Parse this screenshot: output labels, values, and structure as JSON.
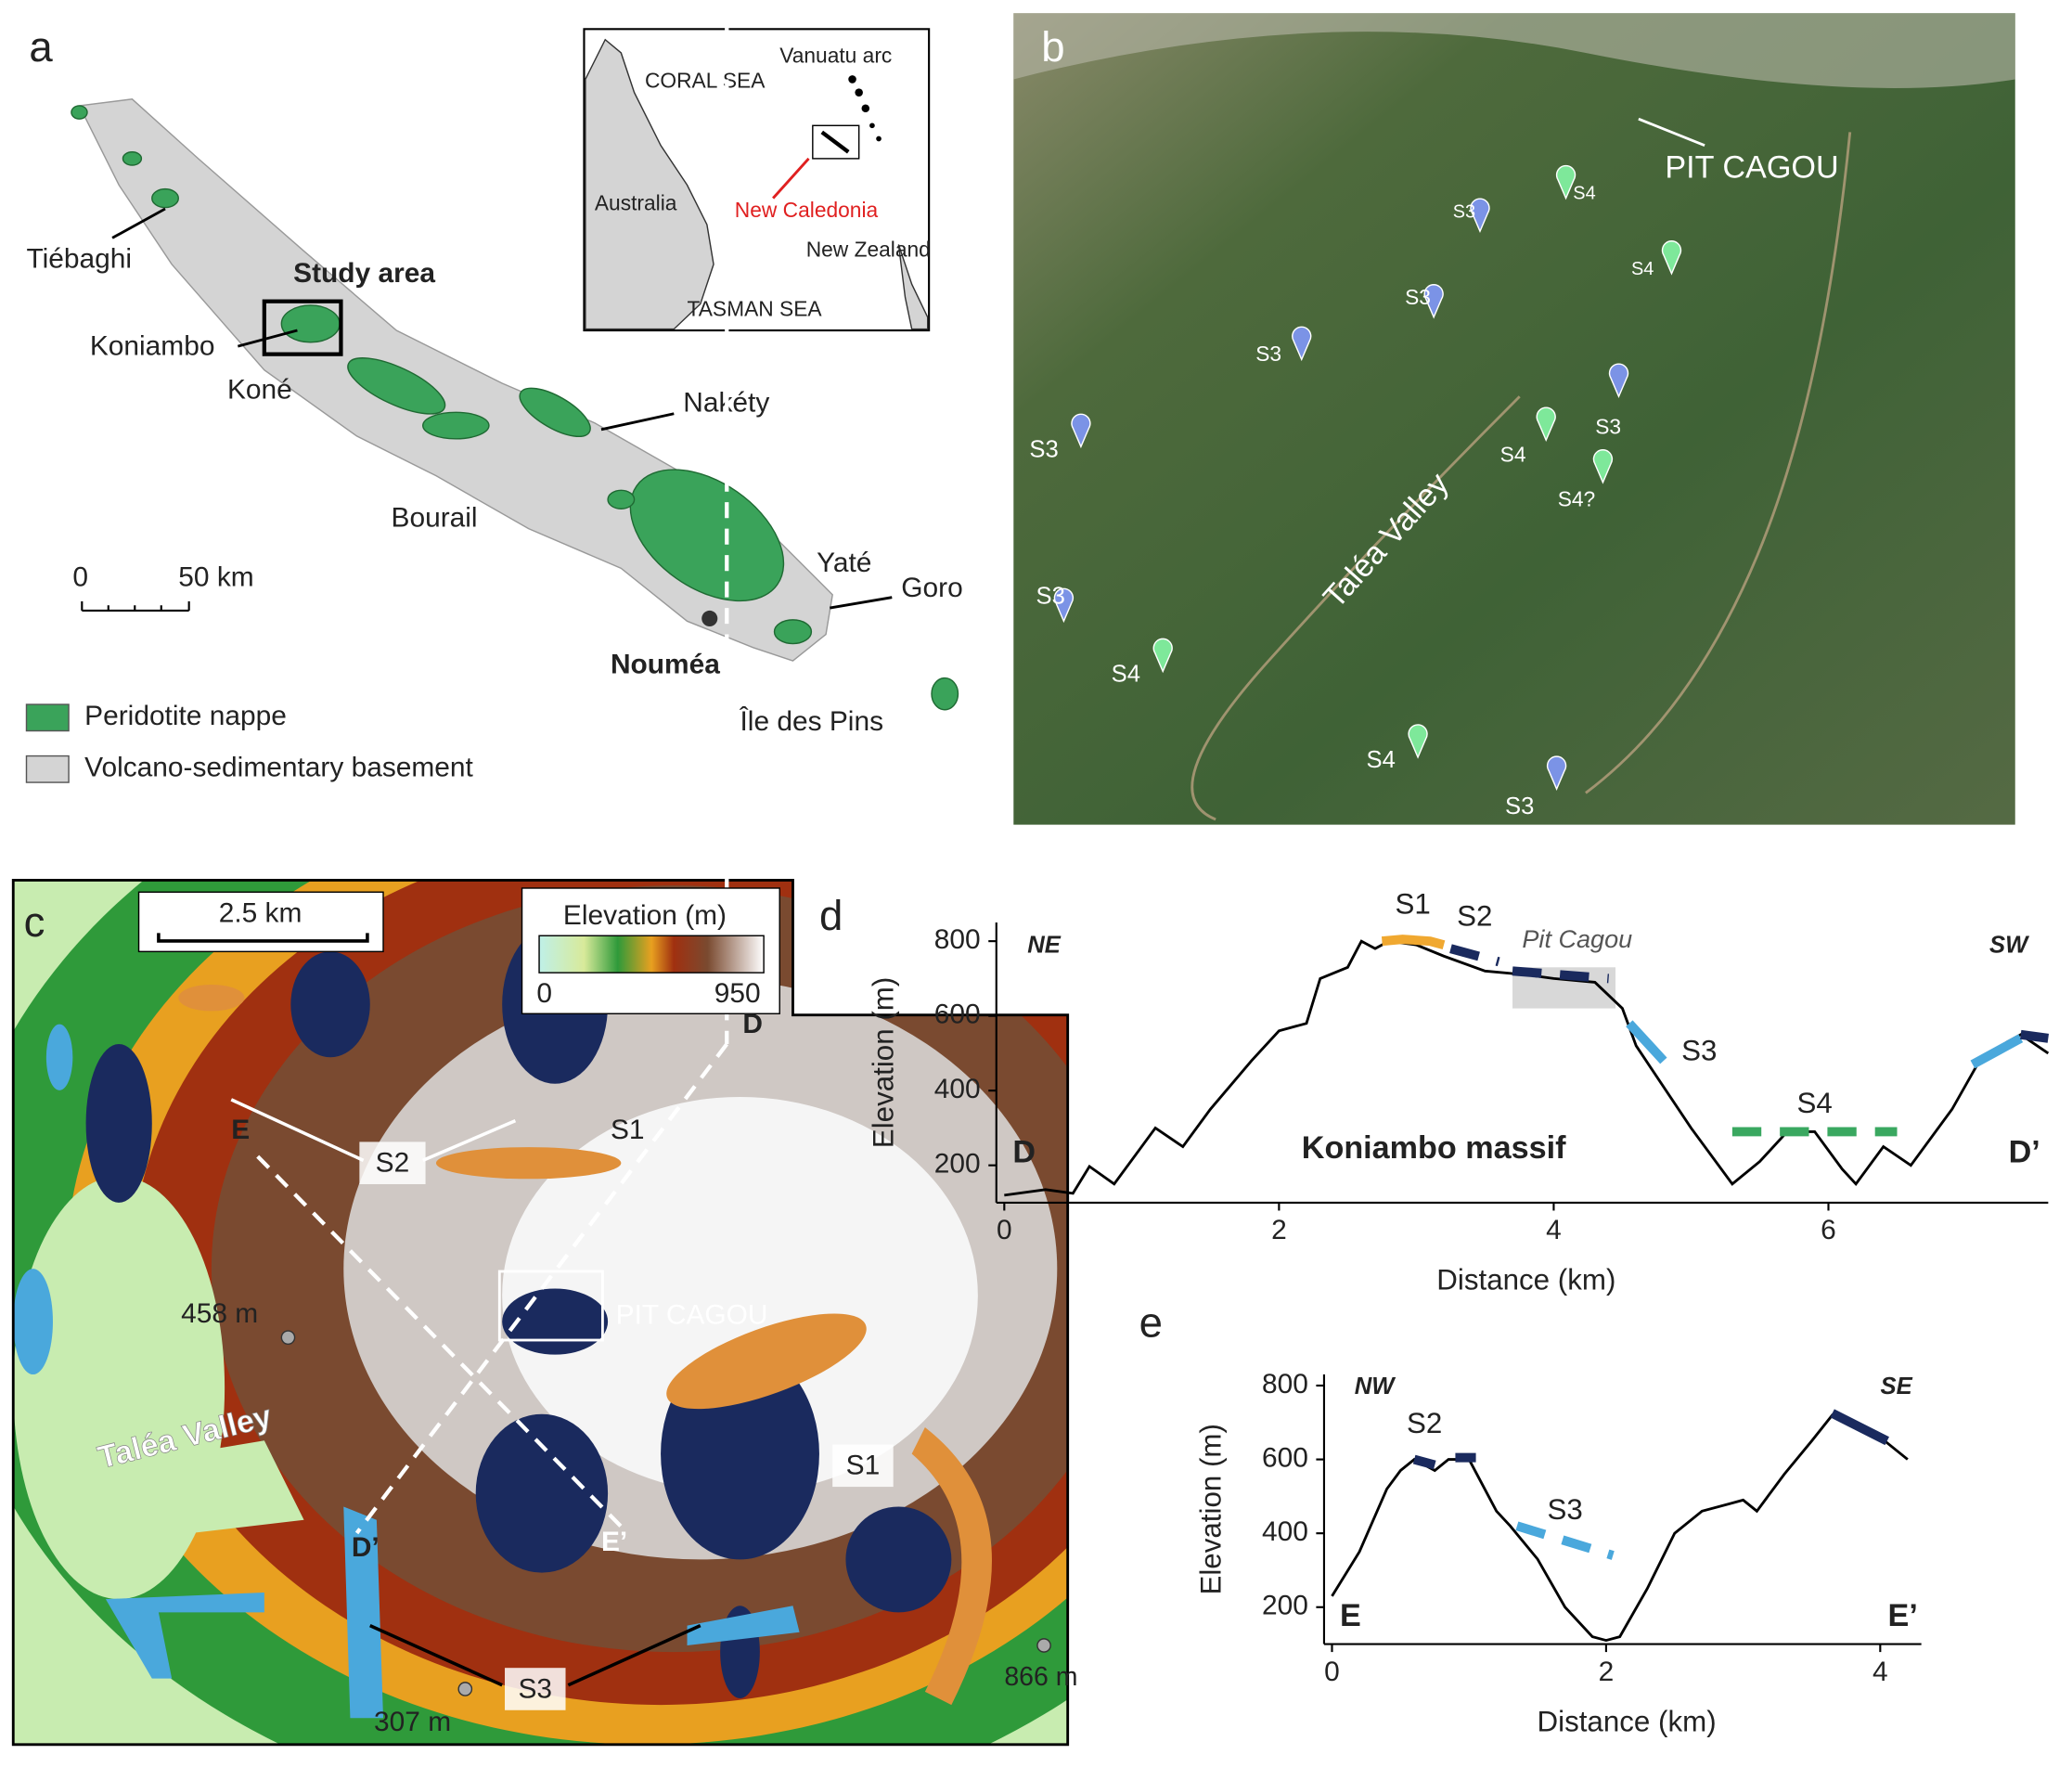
{
  "panel_a": {
    "letter": "a",
    "labels": [
      "Tiébaghi",
      "Study area",
      "Koniambo",
      "Koné",
      "Nakéty",
      "Bourail",
      "Yaté",
      "Goro",
      "Nouméa",
      "Île des Pins"
    ],
    "scale_bar": {
      "start": "0",
      "end": "50 km"
    },
    "legend": [
      "Peridotite nappe",
      "Volcano-sedimentary basement"
    ],
    "inset": [
      "CORAL SEA",
      "Vanuatu arc",
      "Australia",
      "New Caledonia",
      "New Zealand",
      "TASMAN SEA"
    ]
  },
  "panel_b": {
    "letter": "b",
    "title": "PIT CAGOU",
    "valley": "Taléa Valley",
    "markers": [
      {
        "label": "S3",
        "color": "#7b93e6"
      },
      {
        "label": "S4",
        "color": "#7ee89a"
      },
      {
        "label": "S4",
        "color": "#7ee89a"
      },
      {
        "label": "S3",
        "color": "#7b93e6"
      },
      {
        "label": "S3",
        "color": "#7b93e6"
      },
      {
        "label": "S3",
        "color": "#7b93e6"
      },
      {
        "label": "S4",
        "color": "#7ee89a"
      },
      {
        "label": "S4?",
        "color": "#7ee89a"
      },
      {
        "label": "S3",
        "color": "#7b93e6"
      },
      {
        "label": "S3",
        "color": "#7b93e6"
      },
      {
        "label": "S4",
        "color": "#7ee89a"
      },
      {
        "label": "S4",
        "color": "#7ee89a"
      },
      {
        "label": "S3",
        "color": "#7b93e6"
      }
    ]
  },
  "panel_c": {
    "letter": "c",
    "scale": "2.5 km",
    "colorbar": {
      "title": "Elevation (m)",
      "min": 0,
      "max": 950
    },
    "labels": [
      "D",
      "E",
      "S2",
      "S1",
      "458 m",
      "PIT CAGOU",
      "Taléa Valley",
      "S1",
      "D’",
      "E’",
      "S3",
      "307 m",
      "866 m"
    ]
  },
  "chart_data": [
    {
      "type": "line",
      "panel": "d",
      "color": "#000000",
      "x": [
        0,
        0.3,
        0.5,
        0.62,
        0.8,
        1.0,
        1.1,
        1.3,
        1.5,
        1.8,
        2.0,
        2.2,
        2.3,
        2.5,
        2.6,
        2.7,
        2.8,
        3.0,
        3.2,
        3.5,
        3.8,
        4.0,
        4.3,
        4.5,
        4.6,
        5.0,
        5.3,
        5.5,
        5.7,
        5.9,
        6.1,
        6.2,
        6.4,
        6.6,
        6.9,
        7.1,
        7.3,
        7.4,
        7.6
      ],
      "values": [
        120,
        135,
        125,
        197,
        150,
        250,
        300,
        250,
        350,
        480,
        560,
        580,
        700,
        730,
        800,
        780,
        800,
        790,
        760,
        720,
        710,
        700,
        690,
        620,
        520,
        300,
        150,
        210,
        290,
        290,
        190,
        150,
        250,
        200,
        350,
        480,
        530,
        550,
        500
      ],
      "xlim": [
        0,
        7.6
      ],
      "xticks": [
        0,
        2,
        4,
        6
      ],
      "ylim": [
        100,
        850
      ],
      "yticks": [
        200,
        400,
        600,
        800
      ],
      "xlabel": "Distance (km)",
      "ylabel": "Elevation (m)",
      "annotations": [
        "NE",
        "SW",
        "D",
        "D’",
        "Koniambo massif"
      ],
      "highlight": {
        "label": "Pit Cagou",
        "x": [
          3.7,
          4.45
        ],
        "y": [
          620,
          730
        ]
      },
      "segments": [
        {
          "label": "S1",
          "color": "#f0a830",
          "dashed": false,
          "x": [
            2.75,
            2.9,
            3.1,
            3.2
          ],
          "values": [
            800,
            805,
            800,
            790
          ]
        },
        {
          "label": "S2",
          "color": "#1a2a5e",
          "dashed": true,
          "x": [
            3.25,
            3.6
          ],
          "values": [
            780,
            745
          ]
        },
        {
          "color": "#1a2a5e",
          "dashed": true,
          "x": [
            3.7,
            4.4
          ],
          "values": [
            720,
            700
          ]
        },
        {
          "label": "S3",
          "color": "#4aa8dc",
          "dashed": false,
          "x": [
            4.55,
            4.8
          ],
          "values": [
            580,
            480
          ]
        },
        {
          "label": "S4",
          "color": "#3aa860",
          "dashed": true,
          "x": [
            5.3,
            6.5
          ],
          "values": [
            290,
            290
          ]
        },
        {
          "color": "#4aa8dc",
          "dashed": false,
          "x": [
            7.05,
            7.4
          ],
          "values": [
            470,
            540
          ]
        },
        {
          "color": "#1a2a5e",
          "dashed": false,
          "x": [
            7.4,
            7.6
          ],
          "values": [
            550,
            540
          ]
        }
      ]
    },
    {
      "type": "line",
      "panel": "e",
      "color": "#000000",
      "x": [
        0,
        0.2,
        0.4,
        0.5,
        0.6,
        0.75,
        0.85,
        1.0,
        1.1,
        1.2,
        1.3,
        1.5,
        1.7,
        1.9,
        2.0,
        2.1,
        2.3,
        2.5,
        2.7,
        2.9,
        3.0,
        3.1,
        3.3,
        3.5,
        3.65,
        3.8,
        4.0,
        4.2
      ],
      "values": [
        230,
        350,
        520,
        570,
        600,
        570,
        600,
        600,
        530,
        460,
        420,
        330,
        200,
        120,
        110,
        120,
        250,
        400,
        460,
        480,
        490,
        460,
        560,
        650,
        720,
        690,
        660,
        600
      ],
      "xlim": [
        0,
        4.3
      ],
      "xticks": [
        0,
        2,
        4
      ],
      "ylim": [
        100,
        830
      ],
      "yticks": [
        200,
        400,
        600,
        800
      ],
      "xlabel": "Distance (km)",
      "ylabel": "Elevation (m)",
      "annotations": [
        "NW",
        "SE",
        "E",
        "E’"
      ],
      "segments": [
        {
          "label": "S2",
          "color": "#1a2a5e",
          "dashed": false,
          "x": [
            0.6,
            0.75
          ],
          "values": [
            600,
            585
          ]
        },
        {
          "color": "#1a2a5e",
          "dashed": false,
          "x": [
            0.9,
            1.05
          ],
          "values": [
            605,
            605
          ]
        },
        {
          "label": "S3",
          "color": "#4aa8dc",
          "dashed": true,
          "x": [
            1.35,
            2.05
          ],
          "values": [
            420,
            340
          ]
        },
        {
          "color": "#1a2a5e",
          "dashed": false,
          "x": [
            3.65,
            4.05
          ],
          "values": [
            725,
            650
          ]
        }
      ]
    }
  ]
}
